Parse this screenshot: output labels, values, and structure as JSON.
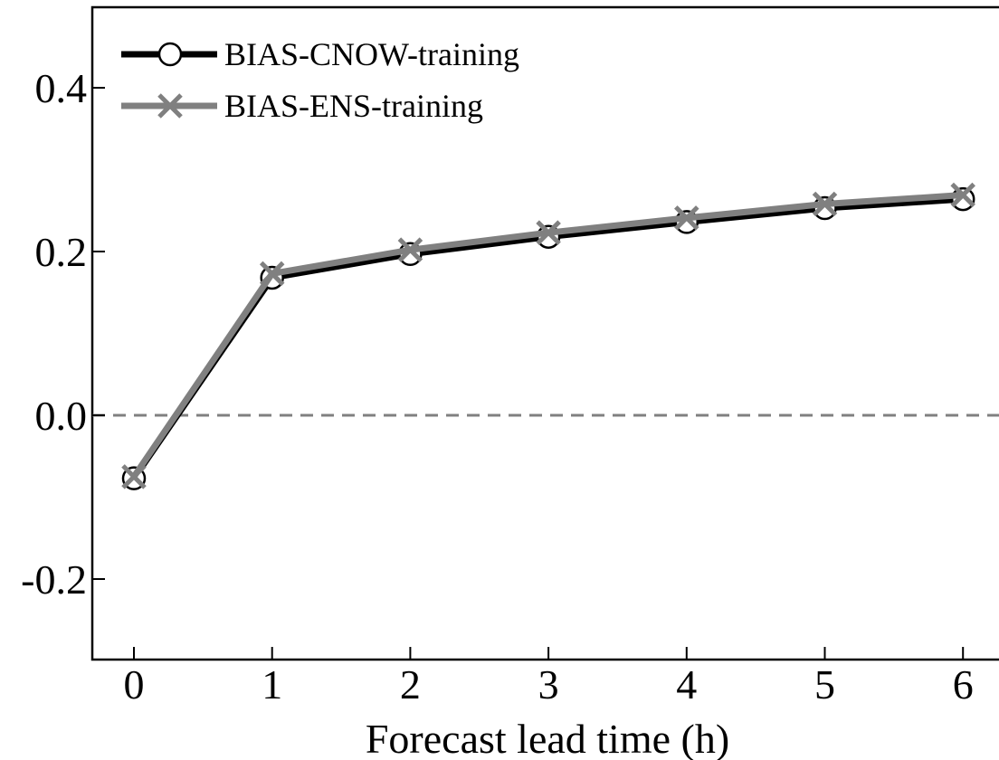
{
  "chart_data": {
    "type": "line",
    "title": "",
    "xlabel": "Forecast lead time (h)",
    "ylabel": "",
    "x": [
      0,
      1,
      2,
      3,
      4,
      5,
      6
    ],
    "xlim": [
      -0.3,
      6.1
    ],
    "ylim": [
      -0.3,
      0.5
    ],
    "xticks": [
      0,
      1,
      2,
      3,
      4,
      5,
      6
    ],
    "xtick_labels": [
      "0",
      "1",
      "2",
      "3",
      "4",
      "5",
      "6"
    ],
    "yticks": [
      -0.2,
      0.0,
      0.2,
      0.4
    ],
    "ytick_labels": [
      "-0.2",
      "0.0",
      "0.2",
      "0.4"
    ],
    "grid": false,
    "legend_position": "top-left",
    "reference_line": {
      "y": 0.0,
      "style": "dashed",
      "color": "#808080"
    },
    "series": [
      {
        "name": "BIAS-CNOW-training",
        "values": [
          -0.077,
          0.168,
          0.197,
          0.218,
          0.236,
          0.253,
          0.264
        ],
        "color": "#000000",
        "marker": "open-circle"
      },
      {
        "name": "BIAS-ENS-training",
        "values": [
          -0.075,
          0.173,
          0.202,
          0.223,
          0.241,
          0.258,
          0.269
        ],
        "color": "#808080",
        "marker": "x"
      }
    ]
  }
}
